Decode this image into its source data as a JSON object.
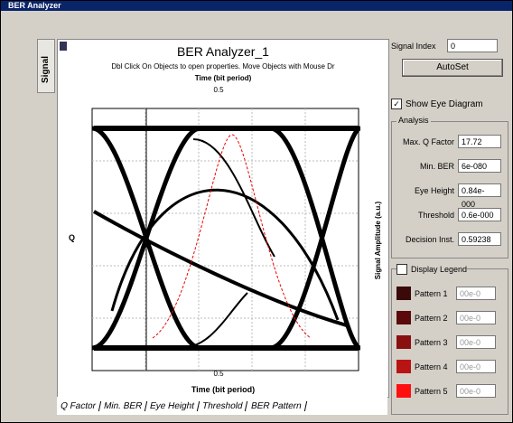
{
  "window": {
    "title": "BER Analyzer"
  },
  "side_tab": "Signal",
  "plot": {
    "title": "BER Analyzer_1",
    "subtitle": "Dbl Click On Objects to open properties.  Move Objects with Mouse Dr",
    "x_label_top": "Time (bit period)",
    "x_label": "Time (bit period)",
    "x_tick_top": "0.5",
    "x_tick": "0.5",
    "y_label_left": "Q",
    "y_label_right": "Signal Amplitude (a.u.)"
  },
  "bottom_tabs": [
    "Q Factor",
    "Min. BER",
    "Eye Height",
    "Threshold",
    "BER Pattern"
  ],
  "panel": {
    "signal_index_label": "Signal Index",
    "signal_index": "0",
    "autoset": "AutoSet",
    "show_eye": "Show Eye Diagram",
    "analysis": "Analysis",
    "fields": [
      {
        "label": "Max. Q Factor",
        "value": "17.72"
      },
      {
        "label": "Min. BER",
        "value": "6e-080"
      },
      {
        "label": "Eye Height",
        "value": "0.84e-000"
      },
      {
        "label": "Threshold",
        "value": "0.6e-000"
      },
      {
        "label": "Decision Inst.",
        "value": "0.59238"
      }
    ],
    "display_legend": "Display Legend",
    "legend": [
      {
        "label": "Pattern 1",
        "value": "00e-0",
        "color": "#3a0a0a"
      },
      {
        "label": "Pattern 2",
        "value": "00e-0",
        "color": "#5a0a0a"
      },
      {
        "label": "Pattern 3",
        "value": "00e-0",
        "color": "#8a1010"
      },
      {
        "label": "Pattern 4",
        "value": "00e-0",
        "color": "#b81414"
      },
      {
        "label": "Pattern 5",
        "value": "00e-0",
        "color": "#ff1010"
      }
    ]
  }
}
